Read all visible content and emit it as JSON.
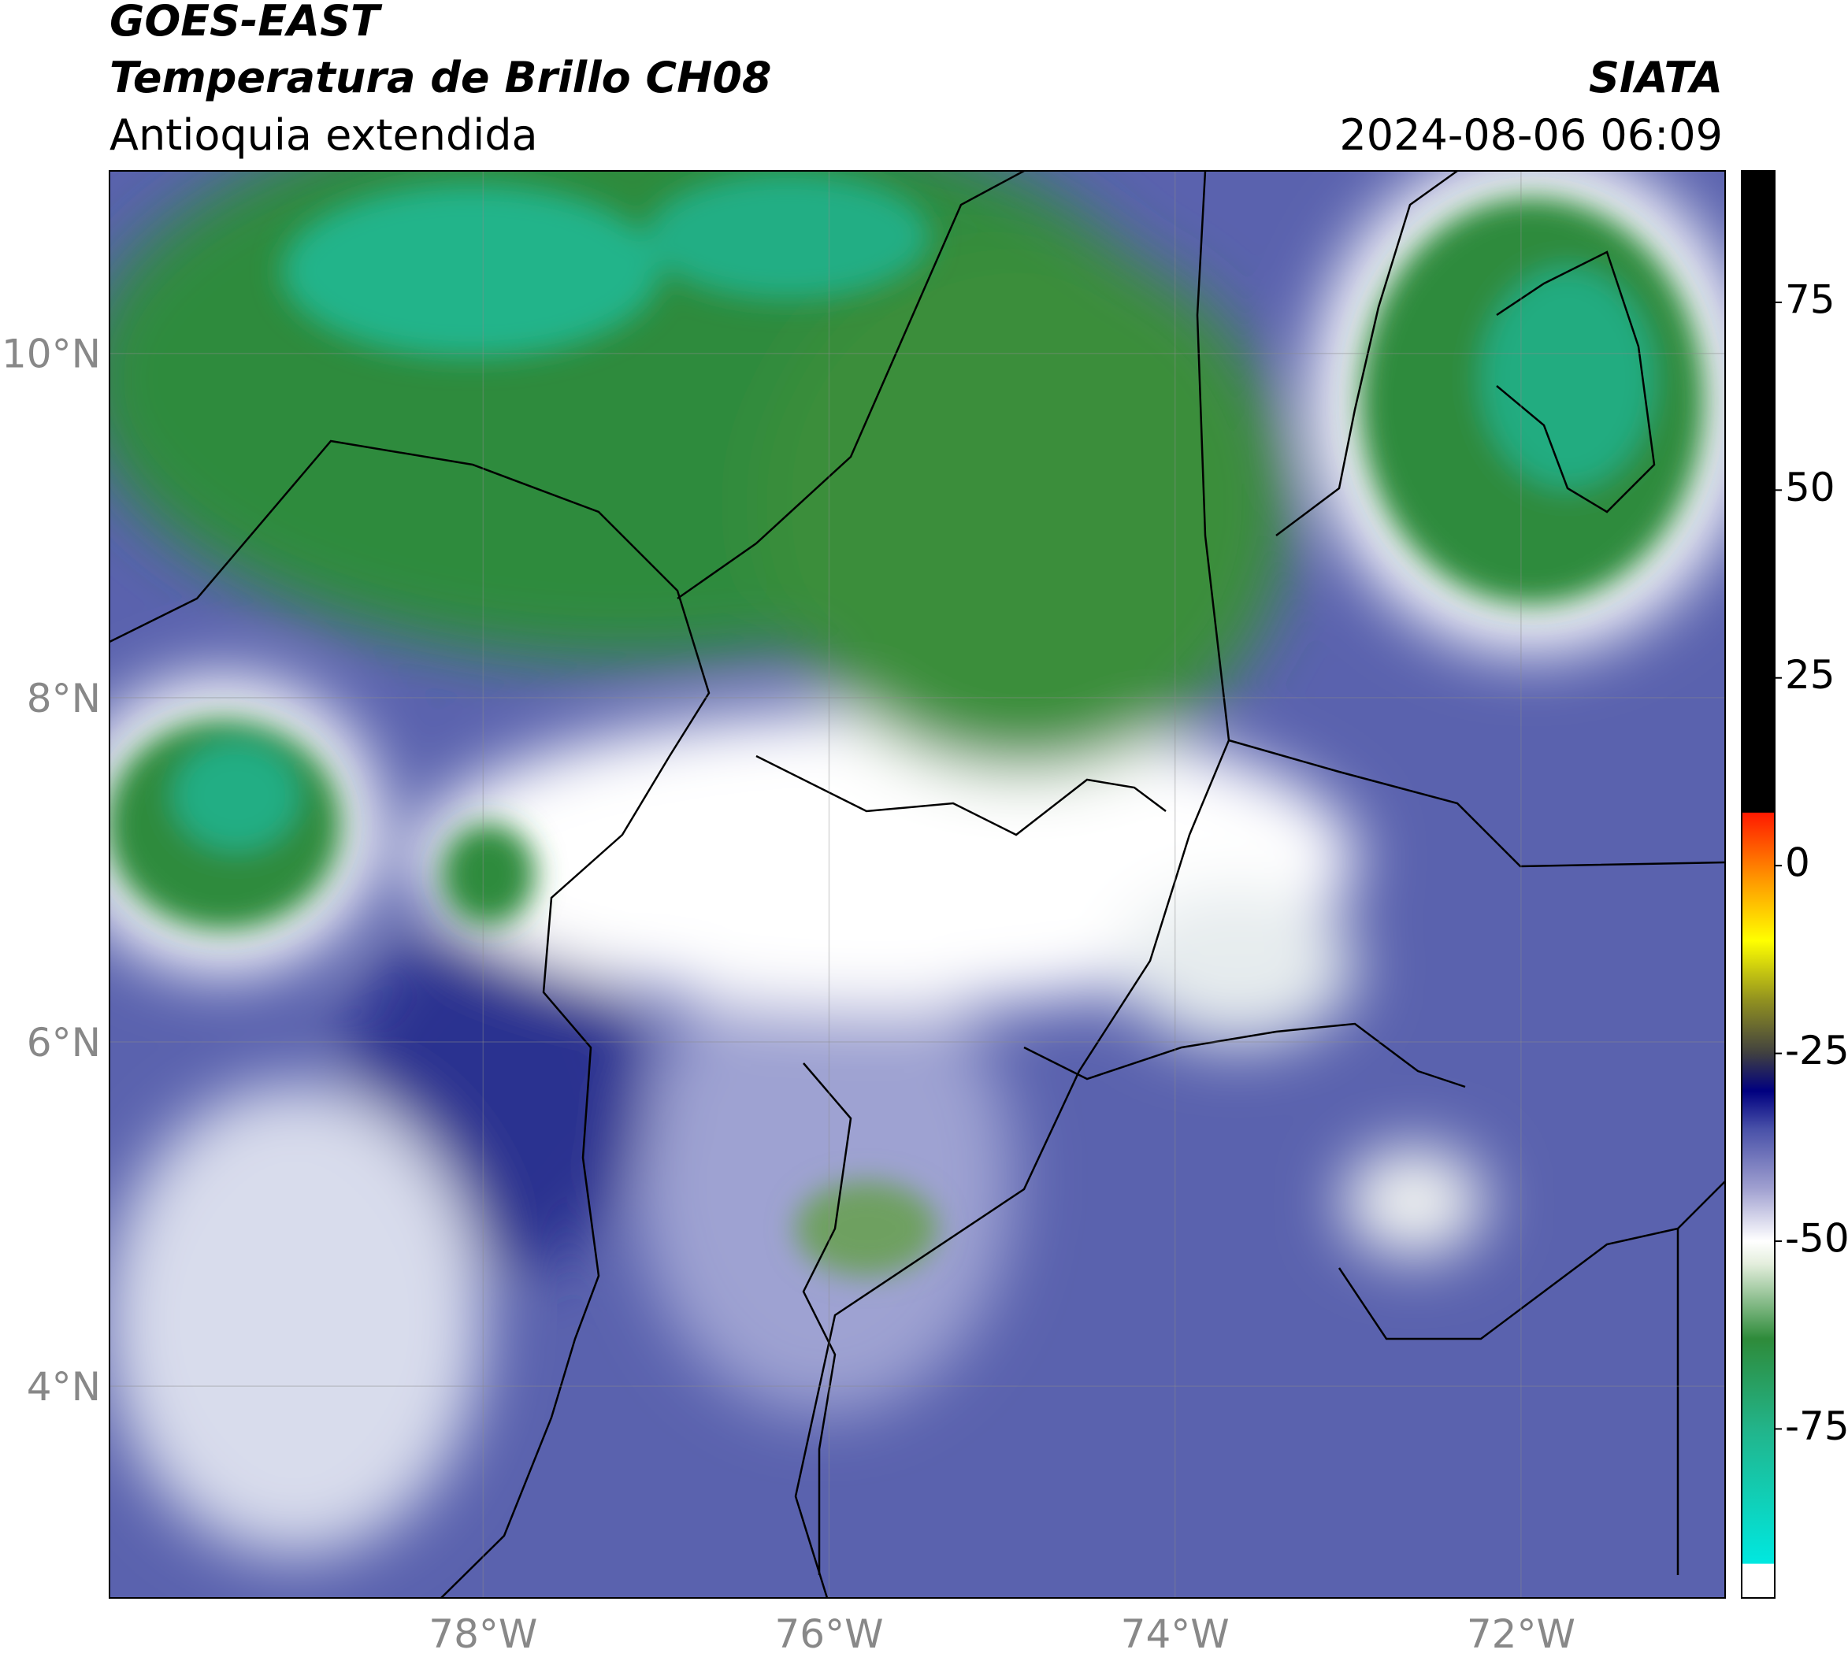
{
  "header": {
    "title": "GOES-EAST",
    "subtitle": "Temperatura de Brillo CH08",
    "region": "Antioquia extendida",
    "source": "SIATA",
    "datetime": "2024-08-06 06:09"
  },
  "map": {
    "xlim": [
      -80.16,
      -70.82
    ],
    "ylim": [
      2.77,
      11.06
    ],
    "xticks": [
      {
        "value": -78,
        "label": "78°W"
      },
      {
        "value": -76,
        "label": "76°W"
      },
      {
        "value": -74,
        "label": "74°W"
      },
      {
        "value": -72,
        "label": "72°W"
      }
    ],
    "yticks": [
      {
        "value": 10,
        "label": "10°N"
      },
      {
        "value": 8,
        "label": "8°N"
      },
      {
        "value": 6,
        "label": "6°N"
      },
      {
        "value": 4,
        "label": "4°N"
      }
    ],
    "grid": true
  },
  "colorbar": {
    "lim": [
      -97.5,
      92.5
    ],
    "ticks": [
      75,
      50,
      25,
      0,
      -25,
      -50,
      -75
    ],
    "stops": [
      {
        "value": -97.5,
        "color": "#ffffff"
      },
      {
        "value": -93,
        "color": "#ffffff"
      },
      {
        "value": -92.9,
        "color": "#00e8e0"
      },
      {
        "value": -75,
        "color": "#22b48a"
      },
      {
        "value": -63,
        "color": "#2e8b3a"
      },
      {
        "value": -53,
        "color": "#e4eedd"
      },
      {
        "value": -50,
        "color": "#ffffff"
      },
      {
        "value": -43,
        "color": "#a0a0d0"
      },
      {
        "value": -35,
        "color": "#4850a8"
      },
      {
        "value": -30,
        "color": "#000080"
      },
      {
        "value": -25,
        "color": "#404040"
      },
      {
        "value": -18,
        "color": "#909020"
      },
      {
        "value": -10,
        "color": "#ffff00"
      },
      {
        "value": -2,
        "color": "#ff9900"
      },
      {
        "value": 7,
        "color": "#ff1a00"
      },
      {
        "value": 7.1,
        "color": "#000000"
      },
      {
        "value": 92.5,
        "color": "#000000"
      }
    ]
  }
}
